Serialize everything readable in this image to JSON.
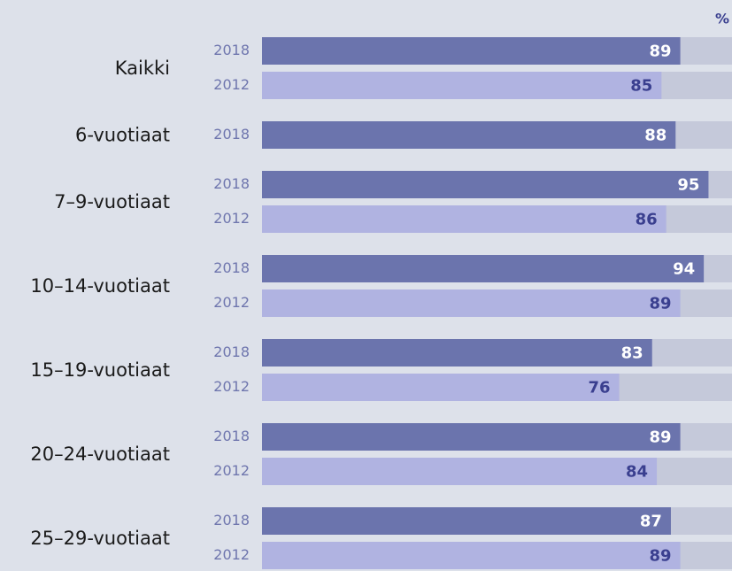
{
  "chart_data": {
    "type": "bar",
    "unit_label": "%",
    "xlim": [
      0,
      100
    ],
    "track_color": "#c5c9da",
    "series_colors": {
      "2018": "#6b74ad",
      "2012": "#b0b3e1"
    },
    "label_colors": {
      "2018": "#ffffff",
      "2012": "#3a3f8f"
    },
    "groups": [
      {
        "name": "Kaikki",
        "bars": [
          {
            "year": "2018",
            "value": 89
          },
          {
            "year": "2012",
            "value": 85
          }
        ]
      },
      {
        "name": "6-vuotiaat",
        "bars": [
          {
            "year": "2018",
            "value": 88
          }
        ]
      },
      {
        "name": "7–9-vuotiaat",
        "bars": [
          {
            "year": "2018",
            "value": 95
          },
          {
            "year": "2012",
            "value": 86
          }
        ]
      },
      {
        "name": "10–14-vuotiaat",
        "bars": [
          {
            "year": "2018",
            "value": 94
          },
          {
            "year": "2012",
            "value": 89
          }
        ]
      },
      {
        "name": "15–19-vuotiaat",
        "bars": [
          {
            "year": "2018",
            "value": 83
          },
          {
            "year": "2012",
            "value": 76
          }
        ]
      },
      {
        "name": "20–24-vuotiaat",
        "bars": [
          {
            "year": "2018",
            "value": 89
          },
          {
            "year": "2012",
            "value": 84
          }
        ]
      },
      {
        "name": "25–29-vuotiaat",
        "bars": [
          {
            "year": "2018",
            "value": 87
          },
          {
            "year": "2012",
            "value": 89
          }
        ]
      }
    ]
  }
}
